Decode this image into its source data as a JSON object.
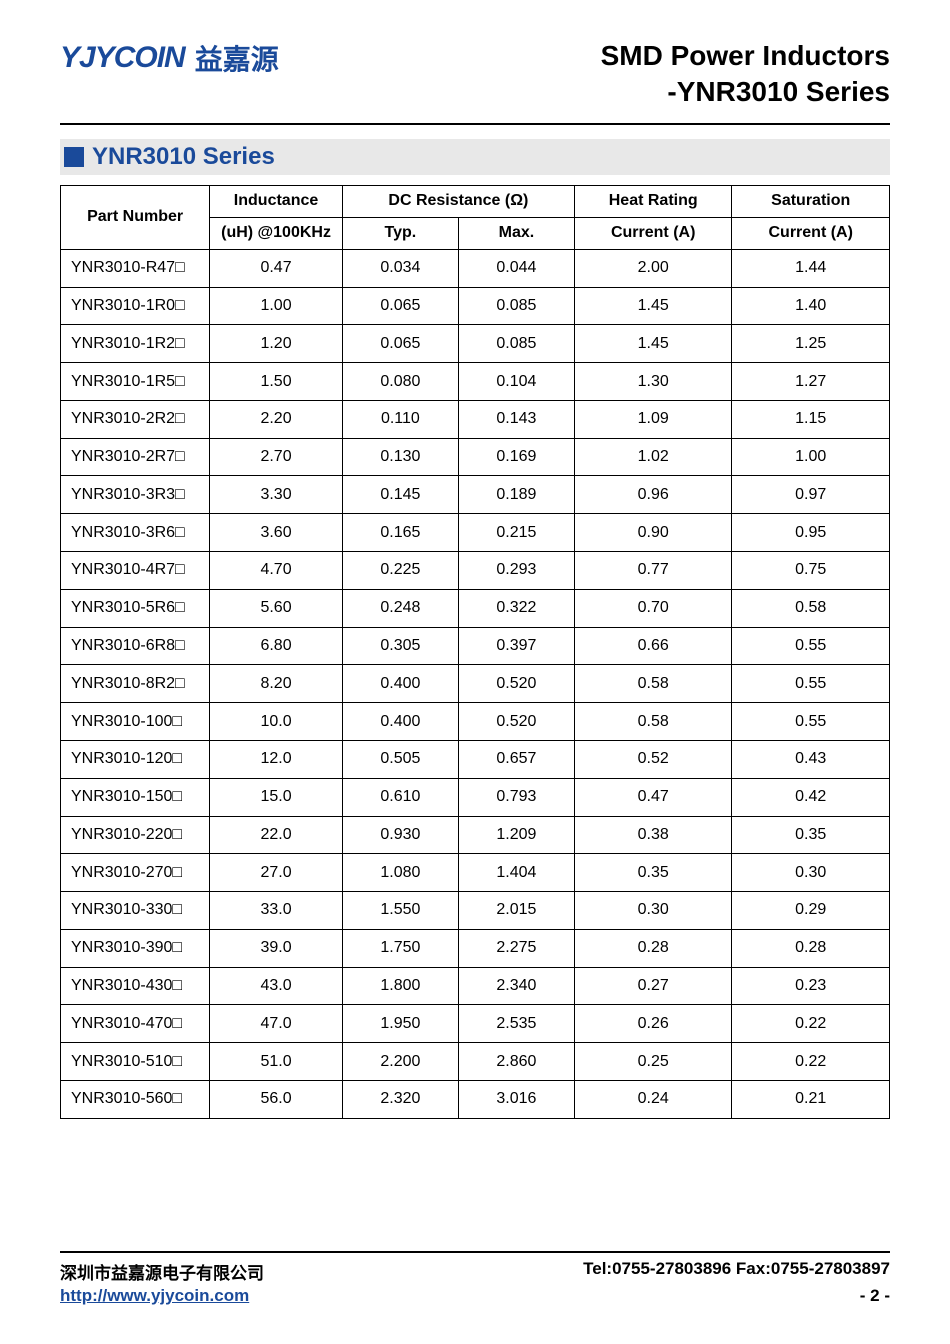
{
  "header": {
    "logo_mark": "YJYCOIN",
    "logo_cn": "益嘉源",
    "title_main": "SMD Power Inductors",
    "title_sub": "-YNR3010 Series"
  },
  "series_bar": {
    "title": "YNR3010 Series"
  },
  "table": {
    "columns": {
      "part_number": "Part Number",
      "inductance_top": "Inductance",
      "inductance_bot": "(uH) @100KHz",
      "dcr_top": "DC Resistance (Ω)",
      "dcr_typ": "Typ.",
      "dcr_max": "Max.",
      "heat_top": "Heat Rating",
      "heat_bot": "Current (A)",
      "sat_top": "Saturation",
      "sat_bot": "Current (A)"
    },
    "rows": [
      {
        "pn": "YNR3010-R47□",
        "ind": "0.47",
        "typ": "0.034",
        "max": "0.044",
        "heat": "2.00",
        "sat": "1.44"
      },
      {
        "pn": "YNR3010-1R0□",
        "ind": "1.00",
        "typ": "0.065",
        "max": "0.085",
        "heat": "1.45",
        "sat": "1.40"
      },
      {
        "pn": "YNR3010-1R2□",
        "ind": "1.20",
        "typ": "0.065",
        "max": "0.085",
        "heat": "1.45",
        "sat": "1.25"
      },
      {
        "pn": "YNR3010-1R5□",
        "ind": "1.50",
        "typ": "0.080",
        "max": "0.104",
        "heat": "1.30",
        "sat": "1.27"
      },
      {
        "pn": "YNR3010-2R2□",
        "ind": "2.20",
        "typ": "0.110",
        "max": "0.143",
        "heat": "1.09",
        "sat": "1.15"
      },
      {
        "pn": "YNR3010-2R7□",
        "ind": "2.70",
        "typ": "0.130",
        "max": "0.169",
        "heat": "1.02",
        "sat": "1.00"
      },
      {
        "pn": "YNR3010-3R3□",
        "ind": "3.30",
        "typ": "0.145",
        "max": "0.189",
        "heat": "0.96",
        "sat": "0.97"
      },
      {
        "pn": "YNR3010-3R6□",
        "ind": "3.60",
        "typ": "0.165",
        "max": "0.215",
        "heat": "0.90",
        "sat": "0.95"
      },
      {
        "pn": "YNR3010-4R7□",
        "ind": "4.70",
        "typ": "0.225",
        "max": "0.293",
        "heat": "0.77",
        "sat": "0.75"
      },
      {
        "pn": "YNR3010-5R6□",
        "ind": "5.60",
        "typ": "0.248",
        "max": "0.322",
        "heat": "0.70",
        "sat": "0.58"
      },
      {
        "pn": "YNR3010-6R8□",
        "ind": "6.80",
        "typ": "0.305",
        "max": "0.397",
        "heat": "0.66",
        "sat": "0.55"
      },
      {
        "pn": "YNR3010-8R2□",
        "ind": "8.20",
        "typ": "0.400",
        "max": "0.520",
        "heat": "0.58",
        "sat": "0.55"
      },
      {
        "pn": "YNR3010-100□",
        "ind": "10.0",
        "typ": "0.400",
        "max": "0.520",
        "heat": "0.58",
        "sat": "0.55"
      },
      {
        "pn": "YNR3010-120□",
        "ind": "12.0",
        "typ": "0.505",
        "max": "0.657",
        "heat": "0.52",
        "sat": "0.43"
      },
      {
        "pn": "YNR3010-150□",
        "ind": "15.0",
        "typ": "0.610",
        "max": "0.793",
        "heat": "0.47",
        "sat": "0.42"
      },
      {
        "pn": "YNR3010-220□",
        "ind": "22.0",
        "typ": "0.930",
        "max": "1.209",
        "heat": "0.38",
        "sat": "0.35"
      },
      {
        "pn": "YNR3010-270□",
        "ind": "27.0",
        "typ": "1.080",
        "max": "1.404",
        "heat": "0.35",
        "sat": "0.30"
      },
      {
        "pn": "YNR3010-330□",
        "ind": "33.0",
        "typ": "1.550",
        "max": "2.015",
        "heat": "0.30",
        "sat": "0.29"
      },
      {
        "pn": "YNR3010-390□",
        "ind": "39.0",
        "typ": "1.750",
        "max": "2.275",
        "heat": "0.28",
        "sat": "0.28"
      },
      {
        "pn": "YNR3010-430□",
        "ind": "43.0",
        "typ": "1.800",
        "max": "2.340",
        "heat": "0.27",
        "sat": "0.23"
      },
      {
        "pn": "YNR3010-470□",
        "ind": "47.0",
        "typ": "1.950",
        "max": "2.535",
        "heat": "0.26",
        "sat": "0.22"
      },
      {
        "pn": "YNR3010-510□",
        "ind": "51.0",
        "typ": "2.200",
        "max": "2.860",
        "heat": "0.25",
        "sat": "0.22"
      },
      {
        "pn": "YNR3010-560□",
        "ind": "56.0",
        "typ": "2.320",
        "max": "3.016",
        "heat": "0.24",
        "sat": "0.21"
      }
    ],
    "col_widths_pct": [
      18,
      16,
      14,
      14,
      19,
      19
    ]
  },
  "footer": {
    "company_cn": "深圳市益嘉源电子有限公司",
    "contact": "Tel:0755-27803896   Fax:0755-27803897",
    "url": "http://www.yjycoin.com",
    "page": "- 2 -"
  },
  "colors": {
    "brand_blue": "#1a4a9a",
    "bar_bg": "#e8e8e8",
    "text": "#000000",
    "bg": "#ffffff"
  }
}
